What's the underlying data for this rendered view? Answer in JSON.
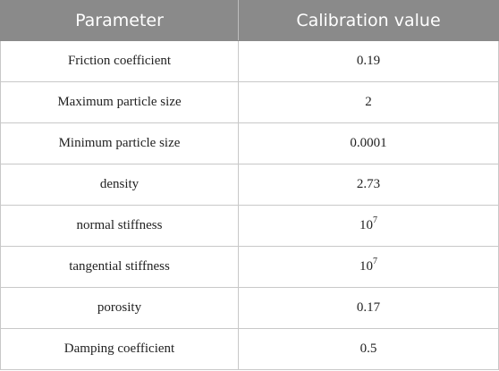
{
  "table": {
    "headers": [
      "Parameter",
      "Calibration value"
    ],
    "rows": [
      {
        "parameter": "Friction coefficient",
        "value": "0.19",
        "exponent": ""
      },
      {
        "parameter": "Maximum particle size",
        "value": "2",
        "exponent": ""
      },
      {
        "parameter": "Minimum particle size",
        "value": "0.0001",
        "exponent": ""
      },
      {
        "parameter": "density",
        "value": "2.73",
        "exponent": ""
      },
      {
        "parameter": "normal stiffness",
        "value": "10",
        "exponent": "7"
      },
      {
        "parameter": "tangential stiffness",
        "value": "10",
        "exponent": "7"
      },
      {
        "parameter": "porosity",
        "value": "0.17",
        "exponent": ""
      },
      {
        "parameter": "Damping coefficient",
        "value": "0.5",
        "exponent": ""
      }
    ]
  }
}
